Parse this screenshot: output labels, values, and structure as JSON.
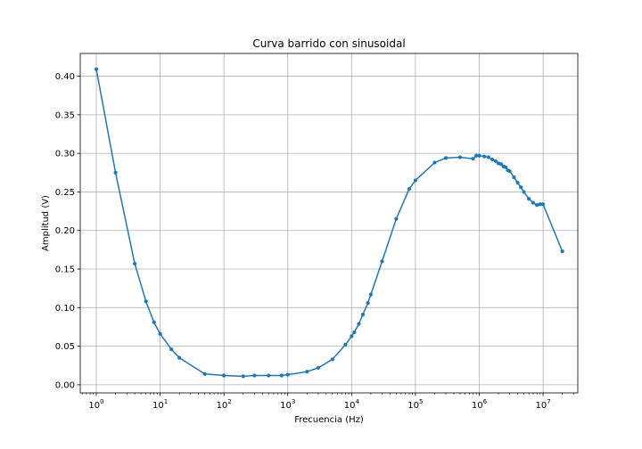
{
  "chart_data": {
    "type": "line",
    "title": "Curva barrido con sinusoidal",
    "xlabel": "Frecuencia (Hz)",
    "ylabel": "Amplitud (V)",
    "x_scale": "log",
    "xlim": [
      0.56,
      35000000
    ],
    "ylim": [
      -0.0105,
      0.4295
    ],
    "grid": true,
    "x_ticks": [
      {
        "value": 1,
        "base": "10",
        "exp": "0"
      },
      {
        "value": 10,
        "base": "10",
        "exp": "1"
      },
      {
        "value": 100,
        "base": "10",
        "exp": "2"
      },
      {
        "value": 1000,
        "base": "10",
        "exp": "3"
      },
      {
        "value": 10000,
        "base": "10",
        "exp": "4"
      },
      {
        "value": 100000,
        "base": "10",
        "exp": "5"
      },
      {
        "value": 1000000,
        "base": "10",
        "exp": "6"
      },
      {
        "value": 10000000,
        "base": "10",
        "exp": "7"
      }
    ],
    "y_ticks": [
      {
        "value": 0.0,
        "label": "0.00"
      },
      {
        "value": 0.05,
        "label": "0.05"
      },
      {
        "value": 0.1,
        "label": "0.10"
      },
      {
        "value": 0.15,
        "label": "0.15"
      },
      {
        "value": 0.2,
        "label": "0.20"
      },
      {
        "value": 0.25,
        "label": "0.25"
      },
      {
        "value": 0.3,
        "label": "0.30"
      },
      {
        "value": 0.35,
        "label": "0.35"
      },
      {
        "value": 0.4,
        "label": "0.40"
      }
    ],
    "series": [
      {
        "color": "#1f77b4",
        "marker": "circle",
        "points": [
          [
            1,
            0.409
          ],
          [
            2,
            0.275
          ],
          [
            4,
            0.157
          ],
          [
            6,
            0.108
          ],
          [
            8,
            0.081
          ],
          [
            10,
            0.066
          ],
          [
            15,
            0.046
          ],
          [
            20,
            0.035
          ],
          [
            50,
            0.014
          ],
          [
            100,
            0.012
          ],
          [
            200,
            0.011
          ],
          [
            300,
            0.012
          ],
          [
            500,
            0.012
          ],
          [
            800,
            0.012
          ],
          [
            1000,
            0.013
          ],
          [
            2000,
            0.017
          ],
          [
            3000,
            0.022
          ],
          [
            5000,
            0.033
          ],
          [
            8000,
            0.052
          ],
          [
            10000,
            0.063
          ],
          [
            11000,
            0.068
          ],
          [
            13000,
            0.079
          ],
          [
            15000,
            0.091
          ],
          [
            18000,
            0.106
          ],
          [
            20000,
            0.117
          ],
          [
            30000,
            0.16
          ],
          [
            50000,
            0.215
          ],
          [
            80000,
            0.254
          ],
          [
            100000,
            0.265
          ],
          [
            200000,
            0.288
          ],
          [
            300000,
            0.294
          ],
          [
            500000,
            0.295
          ],
          [
            800000,
            0.293
          ],
          [
            900000,
            0.297
          ],
          [
            1000000,
            0.297
          ],
          [
            1200000,
            0.296
          ],
          [
            1400000,
            0.295
          ],
          [
            1600000,
            0.292
          ],
          [
            1800000,
            0.29
          ],
          [
            2000000,
            0.287
          ],
          [
            2200000,
            0.286
          ],
          [
            2400000,
            0.283
          ],
          [
            2600000,
            0.282
          ],
          [
            2800000,
            0.278
          ],
          [
            3000000,
            0.277
          ],
          [
            3500000,
            0.269
          ],
          [
            4000000,
            0.262
          ],
          [
            4500000,
            0.256
          ],
          [
            5000000,
            0.25
          ],
          [
            6000000,
            0.241
          ],
          [
            7000000,
            0.236
          ],
          [
            8000000,
            0.233
          ],
          [
            9000000,
            0.234
          ],
          [
            10000000,
            0.234
          ],
          [
            20000000,
            0.173
          ]
        ]
      }
    ]
  }
}
